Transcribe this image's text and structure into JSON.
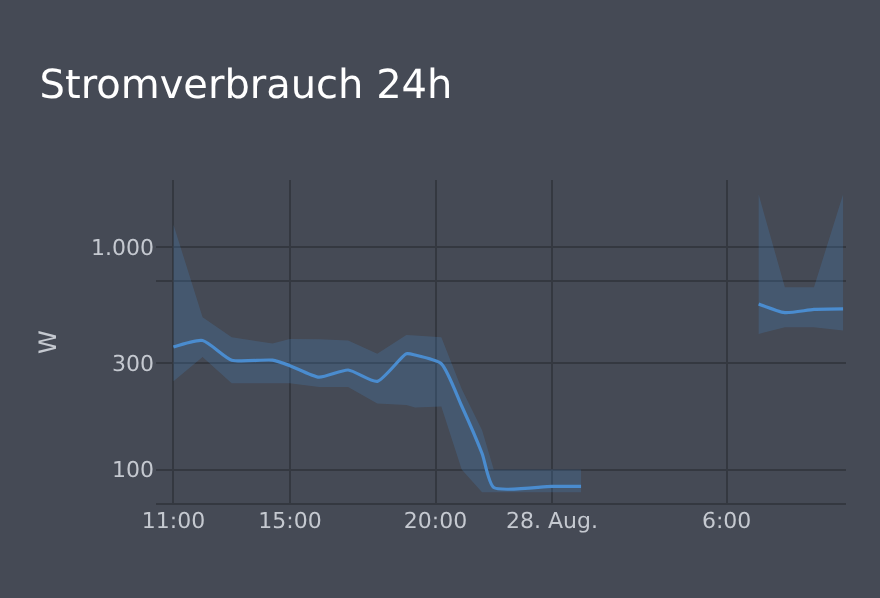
{
  "chart_data": {
    "type": "line",
    "title": "Stromverbrauch 24h",
    "ylabel": "W",
    "x": [
      "--08-27T11:00",
      "--08-27T12:00",
      "--08-27T13:00",
      "--08-27T14:24",
      "--08-27T15:00",
      "--08-27T16:00",
      "--08-27T17:00",
      "--08-27T18:00",
      "--08-27T19:00",
      "--08-27T19:18",
      "--08-27T20:12",
      "--08-27T20:54",
      "--08-27T21:36",
      "--08-27T22:00",
      "--08-28T00:00",
      "--08-28T01:00",
      "--08-28T04:00",
      "--08-28T07:06",
      "--08-28T08:00",
      "--08-28T09:00",
      "--08-28T10:00"
    ],
    "series": [
      {
        "color": "#4a8ccf",
        "values": [
          355,
          380,
          310,
          310,
          293,
          260,
          280,
          249,
          331,
          327,
          299,
          193,
          118,
          83,
          84,
          84,
          null,
          555,
          507,
          524,
          527
        ],
        "lower": [
          249,
          320,
          244,
          244,
          244,
          235,
          235,
          198,
          195,
          190,
          192,
          100,
          79,
          79,
          79,
          79,
          null,
          407,
          436,
          436,
          422
        ],
        "upper": [
          1260,
          483,
          393,
          368,
          386,
          385,
          380,
          331,
          402,
          400,
          393,
          230,
          150,
          100,
          100,
          100,
          null,
          1720,
          659,
          659,
          1720
        ]
      }
    ],
    "log": "y",
    "ylim": [
      70,
      2000
    ],
    "yticks": [
      100,
      300,
      {
        "value": 700,
        "label": null
      },
      {
        "value": 1000,
        "label": "1.000"
      }
    ],
    "xlim": [
      "--08-27T10:24",
      "--08-28T10:06"
    ],
    "xticks": [
      {
        "value": "--08-27T11:00",
        "label": "11:00"
      },
      {
        "value": "--08-27T15:00",
        "label": "15:00"
      },
      {
        "value": "--08-27T20:00",
        "label": "20:00"
      },
      {
        "value": "--08-28T00:00",
        "label": "28. Aug."
      },
      {
        "value": "--08-28T06:00",
        "label": "6:00"
      }
    ],
    "grid": true,
    "marker": "none",
    "line_style": "solid"
  }
}
